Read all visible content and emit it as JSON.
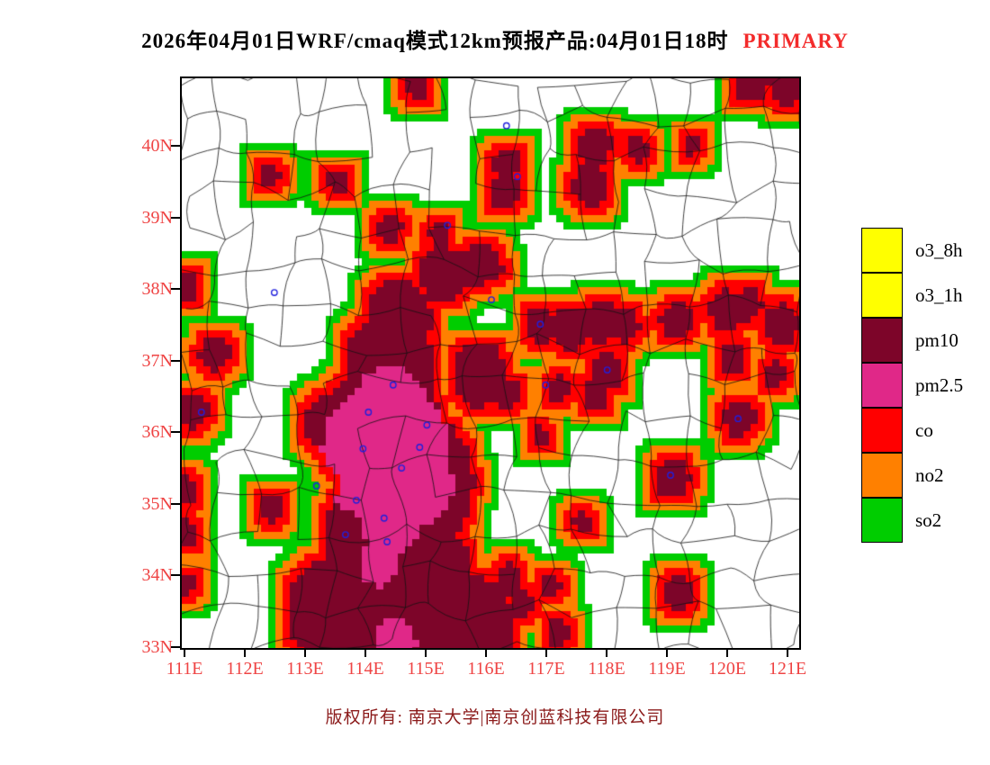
{
  "title": {
    "main": "2026年04月01日WRF/cmaq模式12km预报产品:04月01日18时",
    "highlight": "PRIMARY",
    "highlight_color": "#f32b2b"
  },
  "axes": {
    "label_color": "#ef4444",
    "lat_labels": [
      {
        "label": "40N",
        "value": 40
      },
      {
        "label": "39N",
        "value": 39
      },
      {
        "label": "38N",
        "value": 38
      },
      {
        "label": "37N",
        "value": 37
      },
      {
        "label": "36N",
        "value": 36
      },
      {
        "label": "35N",
        "value": 35
      },
      {
        "label": "34N",
        "value": 34
      },
      {
        "label": "33N",
        "value": 33
      }
    ],
    "lon_labels": [
      {
        "label": "111E",
        "value": 111
      },
      {
        "label": "112E",
        "value": 112
      },
      {
        "label": "113E",
        "value": 113
      },
      {
        "label": "114E",
        "value": 114
      },
      {
        "label": "115E",
        "value": 115
      },
      {
        "label": "116E",
        "value": 116
      },
      {
        "label": "117E",
        "value": 117
      },
      {
        "label": "118E",
        "value": 118
      },
      {
        "label": "119E",
        "value": 119
      },
      {
        "label": "120E",
        "value": 120
      },
      {
        "label": "121E",
        "value": 121
      }
    ]
  },
  "legend": {
    "items": [
      {
        "label": "o3_8h",
        "color": "#ffff00"
      },
      {
        "label": "o3_1h",
        "color": "#ffff00"
      },
      {
        "label": "pm10",
        "color": "#7d0529"
      },
      {
        "label": "pm2.5",
        "color": "#e02888"
      },
      {
        "label": "co",
        "color": "#ff0000"
      },
      {
        "label": "no2",
        "color": "#ff8000"
      },
      {
        "label": "so2",
        "color": "#00cd00"
      }
    ]
  },
  "footer": {
    "copyright": "版权所有: 南京大学|南京创蓝科技有限公司",
    "color": "#8b1a1a"
  },
  "map": {
    "lon_min": 111,
    "lon_max": 121,
    "lat_min": 33,
    "lat_max": 40,
    "boundary_color": "#111111",
    "marker_color": "#2020dd",
    "colors": {
      "pm10": "#7d0529",
      "pm25": "#e02888",
      "co": "#ff0000",
      "no2": "#ff8000",
      "so2": "#00cd00"
    },
    "blobs": [
      [
        114.55,
        37.6,
        0.55
      ],
      [
        114.4,
        36.9,
        0.75
      ],
      [
        114.3,
        36.0,
        1.0
      ],
      [
        114.8,
        35.3,
        1.0
      ],
      [
        114.2,
        34.5,
        0.9
      ],
      [
        114.9,
        33.9,
        0.9
      ],
      [
        114.5,
        33.2,
        1.0
      ],
      [
        113.4,
        33.5,
        0.7
      ],
      [
        115.7,
        33.2,
        0.8
      ],
      [
        113.4,
        36.1,
        0.4
      ],
      [
        115.9,
        36.8,
        0.45
      ],
      [
        115.3,
        38.2,
        0.4
      ],
      [
        115.9,
        38.35,
        0.3
      ],
      [
        114.4,
        38.85,
        0.2
      ],
      [
        115.25,
        38.8,
        0.18
      ],
      [
        116.1,
        38.3,
        0.18
      ],
      [
        114.85,
        40.85,
        0.2
      ],
      [
        116.35,
        39.75,
        0.22
      ],
      [
        116.3,
        39.35,
        0.25
      ],
      [
        117.8,
        40.0,
        0.28
      ],
      [
        117.75,
        39.45,
        0.3
      ],
      [
        118.5,
        39.95,
        0.18
      ],
      [
        119.4,
        40.0,
        0.14
      ],
      [
        120.4,
        40.9,
        0.3
      ],
      [
        121.0,
        40.8,
        0.25
      ],
      [
        112.4,
        39.6,
        0.18
      ],
      [
        113.55,
        39.5,
        0.18
      ],
      [
        111.05,
        38.0,
        0.2
      ],
      [
        111.5,
        37.1,
        0.25
      ],
      [
        111.15,
        36.3,
        0.25
      ],
      [
        111.0,
        35.2,
        0.2
      ],
      [
        111.05,
        34.6,
        0.18
      ],
      [
        111.0,
        33.9,
        0.15
      ],
      [
        116.9,
        37.5,
        0.26
      ],
      [
        117.4,
        37.45,
        0.3
      ],
      [
        117.9,
        37.55,
        0.3
      ],
      [
        118.3,
        37.5,
        0.24
      ],
      [
        119.15,
        37.55,
        0.26
      ],
      [
        120.0,
        37.7,
        0.28
      ],
      [
        120.35,
        37.78,
        0.22
      ],
      [
        120.9,
        37.5,
        0.28
      ],
      [
        120.1,
        37.0,
        0.22
      ],
      [
        120.8,
        36.8,
        0.18
      ],
      [
        118.0,
        36.85,
        0.28
      ],
      [
        117.8,
        36.5,
        0.22
      ],
      [
        117.2,
        36.6,
        0.18
      ],
      [
        116.35,
        36.55,
        0.2
      ],
      [
        116.9,
        35.95,
        0.13
      ],
      [
        120.2,
        36.2,
        0.26
      ],
      [
        119.1,
        35.35,
        0.28
      ],
      [
        112.45,
        34.95,
        0.2
      ],
      [
        116.4,
        33.95,
        0.22
      ],
      [
        116.6,
        33.6,
        0.18
      ],
      [
        117.05,
        33.85,
        0.18
      ],
      [
        119.2,
        33.75,
        0.26
      ],
      [
        117.2,
        33.2,
        0.18
      ],
      [
        117.6,
        34.75,
        0.14
      ]
    ],
    "pink_blobs": [
      [
        114.4,
        36.2,
        0.7
      ],
      [
        114.0,
        35.6,
        0.75
      ],
      [
        114.8,
        35.3,
        0.65
      ],
      [
        114.4,
        34.8,
        0.5
      ],
      [
        113.75,
        35.95,
        0.45
      ],
      [
        114.95,
        35.95,
        0.45
      ],
      [
        114.5,
        33.05,
        0.35
      ],
      [
        114.2,
        34.15,
        0.3
      ]
    ],
    "markers": [
      [
        116.34,
        40.28
      ],
      [
        116.52,
        39.57
      ],
      [
        115.36,
        38.89
      ],
      [
        112.49,
        37.95
      ],
      [
        116.09,
        37.85
      ],
      [
        116.9,
        37.51
      ],
      [
        118.01,
        36.87
      ],
      [
        120.18,
        36.19
      ],
      [
        114.46,
        36.66
      ],
      [
        116.99,
        36.66
      ],
      [
        113.19,
        35.25
      ],
      [
        114.31,
        34.8
      ],
      [
        113.67,
        34.57
      ],
      [
        114.36,
        34.47
      ],
      [
        114.9,
        35.79
      ],
      [
        113.96,
        35.77
      ],
      [
        111.28,
        36.28
      ],
      [
        119.06,
        35.4
      ],
      [
        115.02,
        36.1
      ],
      [
        114.05,
        36.28
      ],
      [
        114.6,
        35.5
      ],
      [
        113.85,
        35.05
      ]
    ]
  }
}
